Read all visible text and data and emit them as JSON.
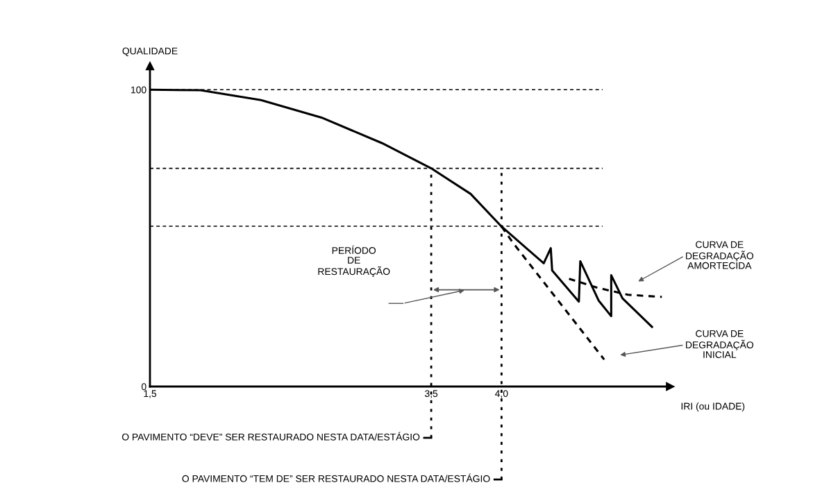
{
  "chart_data": {
    "type": "line",
    "ylabel": "QUALIDADE",
    "xlabel": "IRI (ou IDADE)",
    "xlim": [
      1.5,
      5.2
    ],
    "xticks": [
      {
        "value": 1.5,
        "label": "1,5"
      },
      {
        "value": 3.5,
        "label": "3,5"
      },
      {
        "value": 4.0,
        "label": "4,0"
      }
    ],
    "ylim": [
      0,
      108
    ],
    "yticks": [
      0,
      100
    ],
    "grid": false,
    "marker": "none",
    "series": [
      {
        "color": "#000000",
        "line_style": "solid",
        "x": [
          1.5,
          1.86,
          2.29,
          2.72,
          3.15,
          3.5,
          3.78,
          4.0,
          4.3,
          4.35,
          4.36,
          4.55,
          4.56,
          4.69,
          4.78,
          4.78,
          4.86,
          5.07
        ],
        "values": [
          100,
          99.8,
          96.5,
          90.6,
          82,
          73.5,
          64.9,
          53.9,
          41.5,
          46.6,
          39.1,
          28.6,
          42.2,
          29.0,
          23.7,
          37.5,
          29.7,
          20.1
        ]
      },
      {
        "color": "#000000",
        "line_style": "dashed",
        "x": [
          4.48,
          4.68,
          4.9,
          5.14
        ],
        "values": [
          36.3,
          33.3,
          30.9,
          30.2
        ]
      },
      {
        "color": "#000000",
        "line_style": "dashed",
        "x": [
          4.0,
          4.08,
          4.73
        ],
        "values": [
          53.9,
          48.5,
          9.1
        ]
      }
    ],
    "ref_lines": [
      {
        "axis": "y",
        "value": 100,
        "line_style": "dashed",
        "color": "#000000"
      },
      {
        "axis": "y",
        "value": 73.5,
        "line_style": "dashed",
        "color": "#000000"
      },
      {
        "axis": "y",
        "value": 54,
        "line_style": "dashed",
        "color": "#000000"
      },
      {
        "axis": "x",
        "value": 3.5,
        "line_style": "dotted",
        "color": "#000000",
        "label": "O PAVIMENTO “DEVE” SER RESTAURADO NESTA DATA/ESTÁGIO"
      },
      {
        "axis": "x",
        "value": 4.0,
        "line_style": "dotted",
        "color": "#000000",
        "label": "O PAVIMENTO “TEM DE” SER RESTAURADO NESTA DATA/ESTÁGIO"
      }
    ],
    "annotations": [
      "PERÍODO\nDE\nRESTAURAÇÃO",
      "CURVA DE\nDEGRADAÇÃO\nAMORTECIDA",
      "CURVA DE\nDEGRADAÇÃO\nINICIAL"
    ]
  }
}
